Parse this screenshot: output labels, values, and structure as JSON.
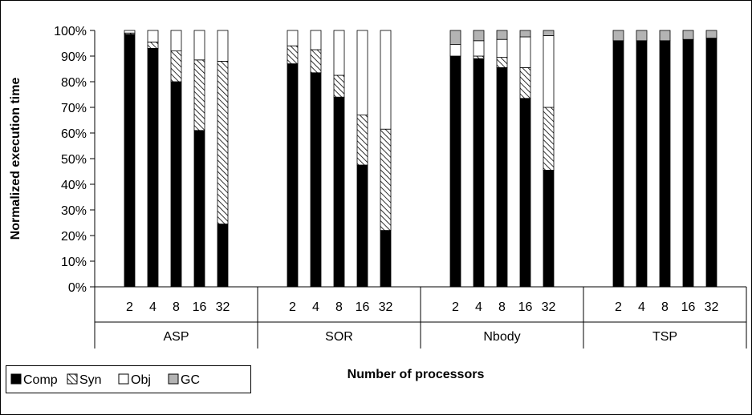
{
  "chart_data": {
    "type": "bar",
    "stacked": true,
    "ylabel": "Normalized execution time",
    "xlabel": "Number of processors",
    "ylim": [
      0,
      100
    ],
    "yticks": [
      "0%",
      "10%",
      "20%",
      "30%",
      "40%",
      "50%",
      "60%",
      "70%",
      "80%",
      "90%",
      "100%"
    ],
    "legend_position": "bottom-left",
    "groups": [
      {
        "name": "ASP",
        "categories": [
          "2",
          "4",
          "8",
          "16",
          "32"
        ]
      },
      {
        "name": "SOR",
        "categories": [
          "2",
          "4",
          "8",
          "16",
          "32"
        ]
      },
      {
        "name": "Nbody",
        "categories": [
          "2",
          "4",
          "8",
          "16",
          "32"
        ]
      },
      {
        "name": "TSP",
        "categories": [
          "2",
          "4",
          "8",
          "16",
          "32"
        ]
      }
    ],
    "series": [
      {
        "name": "Comp",
        "pattern": "solid-black",
        "values": [
          [
            98.5,
            93,
            80,
            61,
            24.5
          ],
          [
            87,
            83.5,
            74,
            47.5,
            22
          ],
          [
            90,
            89,
            85.5,
            73.5,
            45.5
          ],
          [
            96,
            96,
            96,
            96.5,
            97
          ]
        ]
      },
      {
        "name": "Syn",
        "pattern": "hatched",
        "values": [
          [
            0.5,
            2.5,
            12,
            27.5,
            63.5
          ],
          [
            7,
            9,
            8.5,
            19.5,
            39.5
          ],
          [
            0,
            1,
            4,
            12,
            24.5
          ],
          [
            0,
            0,
            0,
            0,
            0
          ]
        ]
      },
      {
        "name": "Obj",
        "pattern": "white",
        "values": [
          [
            1,
            4.5,
            8,
            11.5,
            12
          ],
          [
            6,
            7.5,
            17.5,
            33,
            38.5
          ],
          [
            4.5,
            6,
            7,
            12,
            28
          ],
          [
            0,
            0,
            0,
            0,
            0
          ]
        ]
      },
      {
        "name": "GC",
        "pattern": "gray",
        "values": [
          [
            0,
            0,
            0,
            0,
            0
          ],
          [
            0,
            0,
            0,
            0,
            0
          ],
          [
            5.5,
            4,
            3.5,
            2.5,
            2
          ],
          [
            4,
            4,
            4,
            3.5,
            3
          ]
        ]
      }
    ]
  }
}
